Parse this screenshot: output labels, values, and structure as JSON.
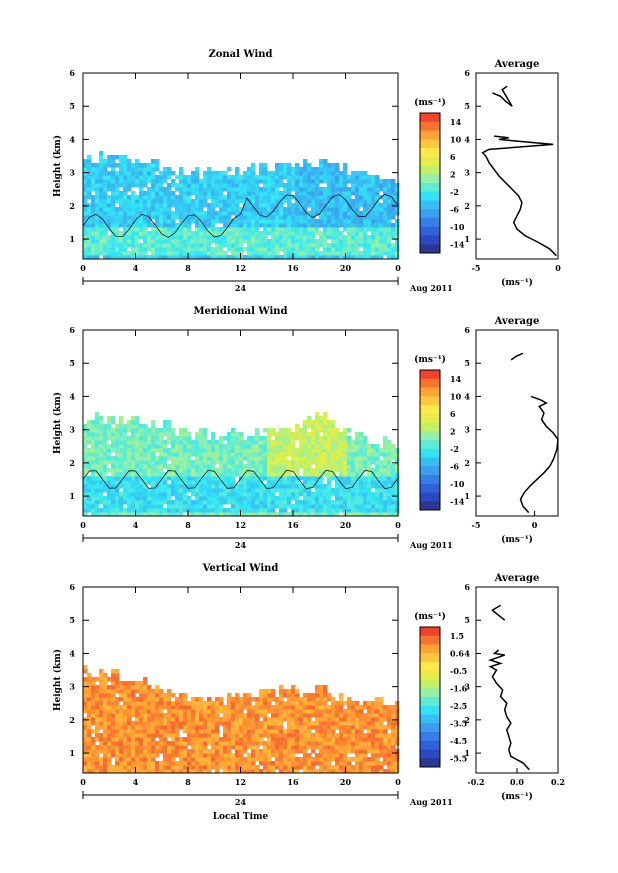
{
  "chart_data": [
    {
      "type": "heatmap",
      "title": "Zonal Wind",
      "ylabel": "Height (km)",
      "x_ticks": [
        "0",
        "4",
        "8",
        "12",
        "16",
        "20",
        "0"
      ],
      "y_ticks": [
        "1",
        "2",
        "3",
        "4",
        "5",
        "6"
      ],
      "day_label": "24",
      "month_label": "Aug 2011",
      "xlim": [
        0,
        24
      ],
      "ylim": [
        0.4,
        6
      ],
      "colorbar_unit": "(ms⁻¹)",
      "colorbar_ticks": [
        "14",
        "10",
        "6",
        "2",
        "-2",
        "-6",
        "-10",
        "-14"
      ],
      "colorbar_range": [
        -16,
        16
      ],
      "field": {
        "top_edge": [
          [
            0,
            3.4
          ],
          [
            2,
            3.5
          ],
          [
            4,
            3.3
          ],
          [
            6,
            3.1
          ],
          [
            8,
            2.9
          ],
          [
            10,
            2.9
          ],
          [
            12,
            3.0
          ],
          [
            14,
            3.1
          ],
          [
            16,
            3.2
          ],
          [
            18,
            3.3
          ],
          [
            20,
            3.0
          ],
          [
            22,
            2.8
          ],
          [
            24,
            2.7
          ]
        ],
        "base_value": -4,
        "high_region": {
          "from_x": 16,
          "value": -5
        },
        "low_region": {
          "bottom": 0.5,
          "top": 1.3,
          "value": -1
        },
        "contour_value": 0
      },
      "profile": {
        "title": "Average",
        "xlabel": "(ms⁻¹)",
        "x_ticks": [
          "-5",
          "0"
        ],
        "xlim": [
          -5,
          0
        ],
        "y_ticks": [
          "1",
          "2",
          "3",
          "4",
          "5",
          "6"
        ],
        "ylim": [
          0.4,
          6
        ],
        "points": [
          [
            -0.1,
            0.5
          ],
          [
            -0.5,
            0.7
          ],
          [
            -1.2,
            0.9
          ],
          [
            -2.0,
            1.1
          ],
          [
            -2.5,
            1.3
          ],
          [
            -2.7,
            1.5
          ],
          [
            -2.5,
            1.7
          ],
          [
            -2.3,
            1.9
          ],
          [
            -2.2,
            2.1
          ],
          [
            -2.4,
            2.3
          ],
          [
            -2.8,
            2.5
          ],
          [
            -3.2,
            2.7
          ],
          [
            -3.6,
            2.9
          ],
          [
            -3.9,
            3.1
          ],
          [
            -4.2,
            3.3
          ],
          [
            -4.4,
            3.5
          ],
          [
            -4.6,
            3.6
          ],
          [
            -4.2,
            3.7
          ],
          [
            -0.3,
            3.85
          ],
          [
            -2.5,
            3.95
          ],
          [
            -3.6,
            4.0
          ],
          [
            -3.0,
            4.05
          ],
          [
            -3.9,
            4.1
          ]
        ],
        "points_upper": [
          [
            -4.0,
            5.4
          ],
          [
            -3.5,
            5.3
          ],
          [
            -3.2,
            5.15
          ],
          [
            -2.8,
            5.0
          ],
          [
            -3.4,
            5.5
          ],
          [
            -3.1,
            5.6
          ]
        ]
      }
    },
    {
      "type": "heatmap",
      "title": "Meridional Wind",
      "ylabel": "Height (km)",
      "x_ticks": [
        "0",
        "4",
        "8",
        "12",
        "16",
        "20",
        "0"
      ],
      "y_ticks": [
        "1",
        "2",
        "3",
        "4",
        "5",
        "6"
      ],
      "day_label": "24",
      "month_label": "Aug 2011",
      "xlim": [
        0,
        24
      ],
      "ylim": [
        0.4,
        6
      ],
      "colorbar_unit": "(ms⁻¹)",
      "colorbar_ticks": [
        "14",
        "10",
        "6",
        "2",
        "-2",
        "-6",
        "-10",
        "-14"
      ],
      "colorbar_range": [
        -16,
        16
      ],
      "field": {
        "top_edge": [
          [
            0,
            3.2
          ],
          [
            2,
            3.3
          ],
          [
            4,
            3.2
          ],
          [
            6,
            3.1
          ],
          [
            8,
            2.8
          ],
          [
            10,
            2.8
          ],
          [
            12,
            2.8
          ],
          [
            14,
            2.9
          ],
          [
            16,
            3.1
          ],
          [
            18,
            3.4
          ],
          [
            20,
            2.8
          ],
          [
            22,
            2.6
          ],
          [
            24,
            2.5
          ]
        ],
        "base_value": 0,
        "high_region": {
          "from_x": 14,
          "to_x": 20,
          "value": 3
        },
        "low_region": {
          "bottom": 0.5,
          "top": 1.6,
          "value": -3
        },
        "contour_value": 0
      },
      "profile": {
        "title": "Average",
        "xlabel": "(ms⁻¹)",
        "x_ticks": [
          "-5",
          "0"
        ],
        "xlim": [
          -5,
          2
        ],
        "y_ticks": [
          "1",
          "2",
          "3",
          "4",
          "5",
          "6"
        ],
        "ylim": [
          0.4,
          6
        ],
        "points": [
          [
            -0.5,
            0.5
          ],
          [
            -1.0,
            0.7
          ],
          [
            -1.2,
            0.9
          ],
          [
            -0.9,
            1.1
          ],
          [
            -0.4,
            1.3
          ],
          [
            0.2,
            1.5
          ],
          [
            0.8,
            1.7
          ],
          [
            1.3,
            1.9
          ],
          [
            1.6,
            2.1
          ],
          [
            1.9,
            2.4
          ],
          [
            2.0,
            2.7
          ],
          [
            1.6,
            2.9
          ],
          [
            1.0,
            3.1
          ],
          [
            0.6,
            3.3
          ],
          [
            0.8,
            3.5
          ],
          [
            0.4,
            3.7
          ],
          [
            1.0,
            3.8
          ],
          [
            0.5,
            3.9
          ],
          [
            -0.3,
            4.0
          ]
        ],
        "points_upper": [
          [
            -1.0,
            5.3
          ],
          [
            -1.6,
            5.2
          ],
          [
            -2.0,
            5.1
          ]
        ]
      }
    },
    {
      "type": "heatmap",
      "title": "Vertical Wind",
      "ylabel": "Height (km)",
      "xlabel": "Local Time",
      "x_ticks": [
        "0",
        "4",
        "8",
        "12",
        "16",
        "20",
        "0"
      ],
      "y_ticks": [
        "1",
        "2",
        "3",
        "4",
        "5",
        "6"
      ],
      "day_label": "24",
      "month_label": "Aug 2011",
      "xlim": [
        0,
        24
      ],
      "ylim": [
        0.4,
        6
      ],
      "colorbar_unit": "(ms⁻¹)",
      "colorbar_ticks": [
        "1.5",
        "0.6",
        "-0.5",
        "-1.6",
        "-2.5",
        "-3.5",
        "-4.5",
        "-5.5"
      ],
      "colorbar_range": [
        -6,
        2
      ],
      "field": {
        "top_edge": [
          [
            0,
            3.4
          ],
          [
            2,
            3.3
          ],
          [
            4,
            3.1
          ],
          [
            6,
            2.9
          ],
          [
            8,
            2.7
          ],
          [
            10,
            2.6
          ],
          [
            12,
            2.7
          ],
          [
            14,
            2.8
          ],
          [
            16,
            2.8
          ],
          [
            18,
            2.9
          ],
          [
            20,
            2.6
          ],
          [
            22,
            2.5
          ],
          [
            24,
            2.5
          ]
        ],
        "base_value": 0.9,
        "high_region": {
          "from_x": 0,
          "to_x": 0,
          "value": 0.9
        },
        "low_region": {
          "bottom": 0.5,
          "top": 0.5,
          "value": 0.9
        },
        "contour_value": null
      },
      "profile": {
        "title": "Average",
        "xlabel": "(ms⁻¹)",
        "x_ticks": [
          "-0.2",
          "0.0",
          "0.2"
        ],
        "xlim": [
          -0.2,
          0.2
        ],
        "y_ticks": [
          "1",
          "2",
          "3",
          "4",
          "5",
          "6"
        ],
        "ylim": [
          0.4,
          6
        ],
        "points": [
          [
            0.06,
            0.5
          ],
          [
            0.03,
            0.7
          ],
          [
            -0.03,
            0.9
          ],
          [
            -0.04,
            1.1
          ],
          [
            -0.03,
            1.3
          ],
          [
            -0.04,
            1.5
          ],
          [
            -0.05,
            1.7
          ],
          [
            -0.03,
            1.9
          ],
          [
            -0.05,
            2.1
          ],
          [
            -0.06,
            2.3
          ],
          [
            -0.05,
            2.5
          ],
          [
            -0.08,
            2.7
          ],
          [
            -0.07,
            2.9
          ],
          [
            -0.1,
            3.1
          ],
          [
            -0.12,
            3.3
          ],
          [
            -0.1,
            3.5
          ],
          [
            -0.13,
            3.6
          ],
          [
            -0.08,
            3.7
          ],
          [
            -0.13,
            3.8
          ],
          [
            -0.06,
            3.95
          ],
          [
            -0.11,
            4.0
          ],
          [
            -0.09,
            4.1
          ]
        ],
        "points_upper": [
          [
            -0.06,
            5.0
          ],
          [
            -0.1,
            5.2
          ],
          [
            -0.12,
            5.3
          ],
          [
            -0.08,
            5.45
          ]
        ]
      }
    }
  ]
}
